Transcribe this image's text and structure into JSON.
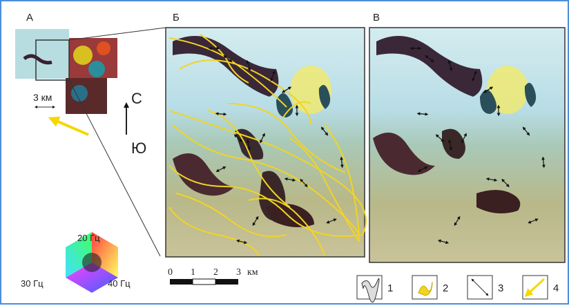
{
  "panels": {
    "a": {
      "label": "А",
      "scale_label": "3 км",
      "north": "С",
      "south": "Ю"
    },
    "b": {
      "label": "Б"
    },
    "c": {
      "label": "В"
    }
  },
  "color_legend": {
    "labels": [
      "20 Гц",
      "30 Гц",
      "40 Гц"
    ]
  },
  "scale_bar": {
    "ticks": [
      "0",
      "1",
      "2",
      "3"
    ],
    "unit": "км"
  },
  "legend": {
    "items": [
      "1",
      "2",
      "3",
      "4"
    ]
  }
}
